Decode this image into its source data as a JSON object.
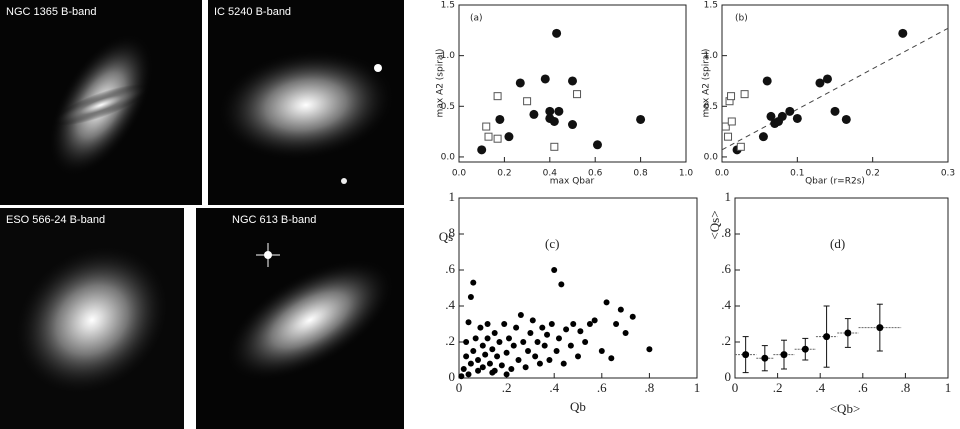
{
  "images": [
    {
      "label": "NGC 1365 B-band"
    },
    {
      "label": "IC 5240 B-band"
    },
    {
      "label": "ESO 566-24 B-band"
    },
    {
      "label": "NGC 613 B-band"
    }
  ],
  "chart_data": [
    {
      "type": "scatter",
      "panel_label": "(a)",
      "xlabel": "max Qbar",
      "ylabel": "max A2 (spiral)",
      "xlim": [
        0,
        1
      ],
      "ylim": [
        -0.05,
        1.5
      ],
      "xticks": [
        {
          "value": 0,
          "label": "0.0"
        },
        {
          "value": 0.2,
          "label": "0.2"
        },
        {
          "value": 0.4,
          "label": "0.4"
        },
        {
          "value": 0.6,
          "label": "0.6"
        },
        {
          "value": 0.8,
          "label": "0.8"
        },
        {
          "value": 1,
          "label": "1.0"
        }
      ],
      "yticks": [
        {
          "value": 0,
          "label": "0.0"
        },
        {
          "value": 0.5,
          "label": "0.5"
        },
        {
          "value": 1,
          "label": "1.0"
        },
        {
          "value": 1.5,
          "label": "1.5"
        }
      ],
      "series": [
        {
          "marker": "circle",
          "color": "#111111",
          "x": [
            0.1,
            0.18,
            0.22,
            0.27,
            0.33,
            0.38,
            0.4,
            0.4,
            0.42,
            0.43,
            0.44,
            0.5,
            0.5,
            0.61,
            0.8
          ],
          "values": [
            0.07,
            0.37,
            0.2,
            0.73,
            0.42,
            0.77,
            0.45,
            0.38,
            0.35,
            1.22,
            0.45,
            0.75,
            0.32,
            0.12,
            0.37
          ]
        },
        {
          "marker": "square",
          "color": "#555555",
          "x": [
            0.12,
            0.13,
            0.17,
            0.17,
            0.3,
            0.42,
            0.52
          ],
          "values": [
            0.3,
            0.2,
            0.18,
            0.6,
            0.55,
            0.1,
            0.62
          ]
        }
      ]
    },
    {
      "type": "scatter",
      "panel_label": "(b)",
      "xlabel": "Qbar (r=R2s)",
      "ylabel": "max A2 (spiral)",
      "xlim": [
        0,
        0.3
      ],
      "ylim": [
        -0.05,
        1.5
      ],
      "xticks": [
        {
          "value": 0,
          "label": "0.0"
        },
        {
          "value": 0.1,
          "label": "0.1"
        },
        {
          "value": 0.2,
          "label": "0.2"
        },
        {
          "value": 0.3,
          "label": "0.3"
        }
      ],
      "yticks": [
        {
          "value": 0,
          "label": "0.0"
        },
        {
          "value": 0.5,
          "label": "0.5"
        },
        {
          "value": 1,
          "label": "1.0"
        },
        {
          "value": 1.5,
          "label": "1.5"
        }
      ],
      "fit_line": {
        "x": [
          0,
          0.3
        ],
        "values": [
          0.07,
          1.27
        ]
      },
      "series": [
        {
          "marker": "circle",
          "color": "#111111",
          "x": [
            0.02,
            0.055,
            0.06,
            0.065,
            0.07,
            0.075,
            0.08,
            0.09,
            0.1,
            0.13,
            0.14,
            0.15,
            0.165,
            0.24
          ],
          "values": [
            0.07,
            0.2,
            0.75,
            0.4,
            0.33,
            0.35,
            0.4,
            0.45,
            0.38,
            0.73,
            0.77,
            0.45,
            0.37,
            1.22
          ]
        },
        {
          "marker": "square",
          "color": "#555555",
          "x": [
            0.005,
            0.008,
            0.01,
            0.012,
            0.013,
            0.03,
            0.025
          ],
          "values": [
            0.3,
            0.2,
            0.55,
            0.6,
            0.35,
            0.62,
            0.1
          ]
        }
      ]
    },
    {
      "type": "scatter",
      "panel_label": "(c)",
      "xlabel": "Qb",
      "ylabel": "Qs",
      "xlim": [
        0,
        1
      ],
      "ylim": [
        0,
        1
      ],
      "xticks": [
        0,
        {
          "value": 0.2,
          "label": ".2"
        },
        {
          "value": 0.4,
          "label": ".4"
        },
        {
          "value": 0.6,
          "label": ".6"
        },
        {
          "value": 0.8,
          "label": ".8"
        },
        1
      ],
      "yticks": [
        0,
        {
          "value": 0.2,
          "label": ".2"
        },
        {
          "value": 0.4,
          "label": ".4"
        },
        {
          "value": 0.6,
          "label": ".6"
        },
        {
          "value": 0.8,
          "label": ".8"
        },
        1
      ],
      "series": [
        {
          "marker": "circle",
          "color": "#000000",
          "x": [
            0.02,
            0.03,
            0.03,
            0.04,
            0.05,
            0.05,
            0.06,
            0.06,
            0.07,
            0.08,
            0.08,
            0.09,
            0.1,
            0.1,
            0.11,
            0.12,
            0.12,
            0.13,
            0.14,
            0.15,
            0.15,
            0.16,
            0.17,
            0.18,
            0.19,
            0.2,
            0.21,
            0.22,
            0.23,
            0.24,
            0.25,
            0.26,
            0.27,
            0.28,
            0.29,
            0.3,
            0.31,
            0.32,
            0.33,
            0.34,
            0.35,
            0.36,
            0.37,
            0.38,
            0.39,
            0.4,
            0.41,
            0.42,
            0.43,
            0.44,
            0.45,
            0.47,
            0.48,
            0.5,
            0.51,
            0.53,
            0.55,
            0.57,
            0.6,
            0.62,
            0.64,
            0.66,
            0.68,
            0.7,
            0.73,
            0.8,
            0.01,
            0.04,
            0.14,
            0.2
          ],
          "values": [
            0.05,
            0.12,
            0.2,
            0.31,
            0.08,
            0.45,
            0.53,
            0.15,
            0.22,
            0.04,
            0.1,
            0.28,
            0.18,
            0.06,
            0.13,
            0.3,
            0.22,
            0.08,
            0.16,
            0.04,
            0.25,
            0.12,
            0.2,
            0.07,
            0.3,
            0.14,
            0.22,
            0.05,
            0.18,
            0.28,
            0.1,
            0.35,
            0.2,
            0.06,
            0.15,
            0.25,
            0.32,
            0.12,
            0.2,
            0.08,
            0.28,
            0.18,
            0.24,
            0.1,
            0.3,
            0.6,
            0.15,
            0.22,
            0.52,
            0.08,
            0.27,
            0.18,
            0.3,
            0.12,
            0.26,
            0.2,
            0.3,
            0.32,
            0.15,
            0.42,
            0.11,
            0.3,
            0.38,
            0.25,
            0.34,
            0.16,
            0.01,
            0.02,
            0.03,
            0.02
          ]
        }
      ]
    },
    {
      "type": "errorbar",
      "panel_label": "(d)",
      "xlabel": "<Qb>",
      "ylabel": "<Qs>",
      "xlim": [
        0,
        1
      ],
      "ylim": [
        0,
        1
      ],
      "xticks": [
        0,
        {
          "value": 0.2,
          "label": ".2"
        },
        {
          "value": 0.4,
          "label": ".4"
        },
        {
          "value": 0.6,
          "label": ".6"
        },
        {
          "value": 0.8,
          "label": ".8"
        },
        1
      ],
      "yticks": [
        0,
        {
          "value": 0.2,
          "label": ".2"
        },
        {
          "value": 0.4,
          "label": ".4"
        },
        {
          "value": 0.6,
          "label": ".6"
        },
        {
          "value": 0.8,
          "label": ".8"
        },
        1
      ],
      "series": [
        {
          "marker": "circle",
          "color": "#000000",
          "x": [
            0.05,
            0.14,
            0.23,
            0.33,
            0.43,
            0.53,
            0.68
          ],
          "values": [
            0.13,
            0.11,
            0.13,
            0.16,
            0.23,
            0.25,
            0.28
          ],
          "xerr": [
            0.05,
            0.04,
            0.05,
            0.05,
            0.05,
            0.05,
            0.1
          ],
          "yerr": [
            0.1,
            0.07,
            0.08,
            0.06,
            0.17,
            0.08,
            0.13
          ]
        }
      ]
    }
  ]
}
